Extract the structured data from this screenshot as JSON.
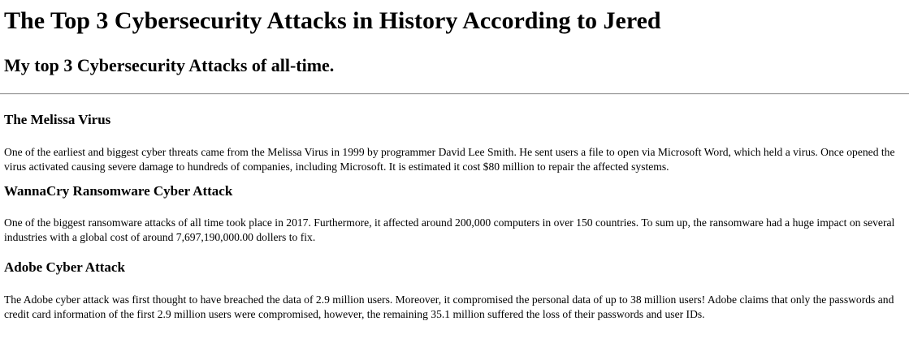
{
  "page": {
    "title": "The Top 3 Cybersecurity Attacks in History According to Jered",
    "subtitle": "My top 3 Cybersecurity Attacks of all-time."
  },
  "attacks": [
    {
      "heading": "The Melissa Virus",
      "body": "One of the earliest and biggest cyber threats came from the Melissa Virus in 1999 by programmer David Lee Smith. He sent users a file to open via Microsoft Word, which held a virus. Once opened the virus activated causing severe damage to hundreds of companies, including Microsoft. It is estimated it cost $80 million to repair the affected systems."
    },
    {
      "heading": "WannaCry Ransomware Cyber Attack",
      "body": "One of the biggest ransomware attacks of all time took place in 2017. Furthermore, it affected around 200,000 computers in over 150 countries. To sum up, the ransomware had a huge impact on several industries with a global cost of around 7,697,190,000.00 dollers to fix."
    },
    {
      "heading": "Adobe Cyber Attack",
      "body": "The Adobe cyber attack was first thought to have breached the data of 2.9 million users. Moreover, it compromised the personal data of up to 38 million users! Adobe claims that only the passwords and credit card information of the first 2.9 million users were compromised, however, the remaining 35.1 million suffered the loss of their passwords and user IDs."
    }
  ]
}
